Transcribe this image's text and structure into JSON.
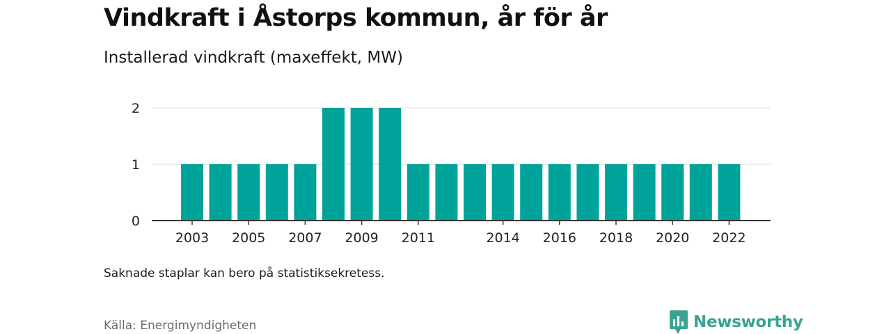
{
  "title": "Vindkraft i Åstorps kommun, år för år",
  "subtitle": "Installerad vindkraft (maxeffekt, MW)",
  "note": "Saknade staplar kan bero på statistiksekretess.",
  "source": "Källa: Energimyndigheten",
  "brand": {
    "name": "Newsworthy",
    "icon": "newsworthy-logo-icon",
    "color": "#3aa394"
  },
  "chart_data": {
    "type": "bar",
    "title": "Vindkraft i Åstorps kommun, år för år",
    "subtitle": "Installerad vindkraft (maxeffekt, MW)",
    "categories": [
      "2003",
      "2004",
      "2005",
      "2006",
      "2007",
      "2008",
      "2009",
      "2010",
      "2011",
      "2012",
      "2013",
      "2014",
      "2015",
      "2016",
      "2017",
      "2018",
      "2019",
      "2020",
      "2021",
      "2022"
    ],
    "values": [
      1,
      1,
      1,
      1,
      1,
      2,
      2,
      2,
      1,
      1,
      1,
      1,
      1,
      1,
      1,
      1,
      1,
      1,
      1,
      1
    ],
    "x_tick_labels": [
      "2003",
      "2005",
      "2007",
      "2009",
      "2011",
      "2014",
      "2016",
      "2018",
      "2020",
      "2022"
    ],
    "y_ticks": [
      0,
      1,
      2
    ],
    "ylim": [
      0,
      2
    ],
    "xlabel": "",
    "ylabel": "",
    "grid": true,
    "bar_color": "#00a39a",
    "grid_color": "#d9d9d9",
    "axis_color": "#333333"
  }
}
